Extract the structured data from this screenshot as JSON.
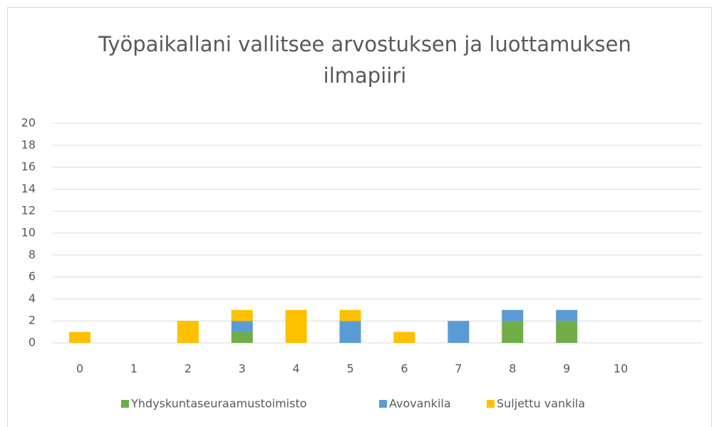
{
  "chart_data": {
    "type": "bar",
    "stacked": true,
    "title": "Työpaikallani vallitsee arvostuksen ja luottamuksen ilmapiiri",
    "categories": [
      "0",
      "1",
      "2",
      "3",
      "4",
      "5",
      "6",
      "7",
      "8",
      "9",
      "10",
      null
    ],
    "series": [
      {
        "name": "Yhdyskuntaseuraamustoimisto",
        "color": "#70ad47",
        "values": [
          0,
          0,
          0,
          1,
          0,
          0,
          0,
          0,
          2,
          2,
          0,
          null
        ]
      },
      {
        "name": "Avovankila",
        "color": "#5b9bd5",
        "values": [
          0,
          0,
          0,
          1,
          0,
          2,
          0,
          2,
          1,
          1,
          0,
          null
        ]
      },
      {
        "name": "Suljettu vankila",
        "color": "#ffc000",
        "values": [
          1,
          0,
          2,
          1,
          3,
          1,
          1,
          0,
          0,
          0,
          0,
          null
        ]
      }
    ],
    "ylim": [
      0,
      20
    ],
    "yticks": [
      0,
      2,
      4,
      6,
      8,
      10,
      12,
      14,
      16,
      18,
      20
    ],
    "grid": true,
    "legend": "bottom"
  }
}
